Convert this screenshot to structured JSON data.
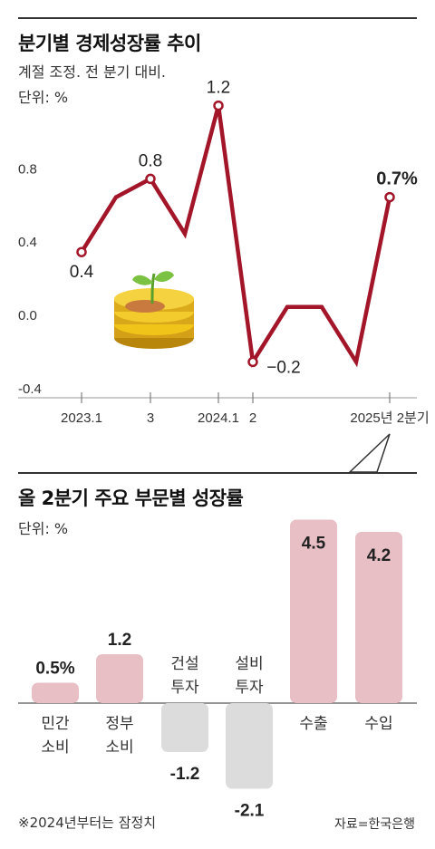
{
  "line_chart": {
    "title": "분기별 경제성장률 추이",
    "note": "계절 조정. 전 분기 대비.",
    "unit": "단위: %"
  },
  "bar_chart": {
    "title": "올 2분기 주요 부문별 성장률",
    "unit": "단위: %"
  },
  "footnote": "※2024년부터는 잠정치",
  "source": "자료=한국은행",
  "colors": {
    "line": "#a3162a",
    "bar_pos": "#e8bfc5",
    "bar_neg": "#dcdcdc"
  },
  "icons": [
    "coin-stack-with-sprout-icon"
  ],
  "chart_data": [
    {
      "type": "line",
      "title": "분기별 경제성장률 추이",
      "ylabel": "단위: %",
      "ylim": [
        -0.4,
        1.2
      ],
      "yticks": [
        {
          "value": 0.8,
          "label": "0.8"
        },
        {
          "value": 0.4,
          "label": "0.4"
        },
        {
          "value": 0.0,
          "label": "0.0"
        },
        {
          "value": -0.4,
          "label": "-0.4"
        }
      ],
      "x": [
        "2023.1",
        "2023.2",
        "2023.3",
        "2023.4",
        "2024.1",
        "2024.2",
        "2024.3",
        "2024.4",
        "2025.1",
        "2025.2"
      ],
      "values": [
        0.4,
        0.7,
        0.8,
        0.5,
        1.2,
        -0.2,
        0.1,
        0.1,
        -0.2,
        0.7
      ],
      "xtick_labels": [
        {
          "index": 0,
          "label": "2023.1"
        },
        {
          "index": 2,
          "label": "3"
        },
        {
          "index": 4,
          "label": "2024.1"
        },
        {
          "index": 5,
          "label": "2"
        },
        {
          "index": 9,
          "label": "2025년 2분기"
        }
      ],
      "point_labels": [
        {
          "index": 0,
          "label": "0.4"
        },
        {
          "index": 2,
          "label": "0.8"
        },
        {
          "index": 4,
          "label": "1.2"
        },
        {
          "index": 5,
          "label": "−0.2"
        },
        {
          "index": 9,
          "label": "0.7%"
        }
      ],
      "grid": false
    },
    {
      "type": "bar",
      "title": "올 2분기 주요 부문별 성장률",
      "ylabel": "단위: %",
      "categories": [
        {
          "line1": "민간",
          "line2": "소비"
        },
        {
          "line1": "정부",
          "line2": "소비"
        },
        {
          "line1": "건설",
          "line2": "투자"
        },
        {
          "line1": "설비",
          "line2": "투자"
        },
        {
          "line1": "수출",
          "line2": ""
        },
        {
          "line1": "수입",
          "line2": ""
        }
      ],
      "values": [
        0.5,
        1.2,
        -1.2,
        -2.1,
        4.5,
        4.2
      ],
      "value_labels": [
        "0.5%",
        "1.2",
        "-1.2",
        "-2.1",
        "4.5",
        "4.2"
      ]
    }
  ]
}
